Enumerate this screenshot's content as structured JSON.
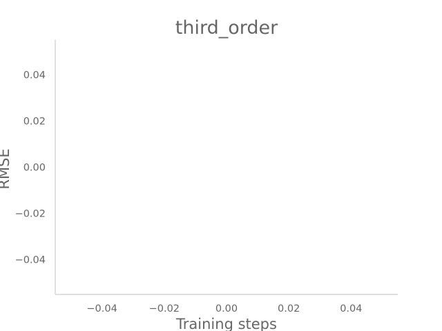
{
  "chart_data": {
    "type": "line",
    "title": "third_order",
    "xlabel": "Training steps",
    "ylabel": "RMSE",
    "xlim": [
      -0.055,
      0.055
    ],
    "ylim": [
      -0.055,
      0.055
    ],
    "xticks": [
      -0.04,
      -0.02,
      0.0,
      0.02,
      0.04
    ],
    "xtick_labels": [
      "−0.04",
      "−0.02",
      "0.00",
      "0.02",
      "0.04"
    ],
    "yticks": [
      -0.04,
      -0.02,
      0.0,
      0.02,
      0.04
    ],
    "ytick_labels": [
      "−0.04",
      "−0.02",
      "0.00",
      "0.02",
      "0.04"
    ],
    "series": [],
    "grid": false,
    "legend": "none",
    "colors": {
      "text": "#666666",
      "spine": "#cccccc",
      "background": "#ffffff"
    }
  }
}
